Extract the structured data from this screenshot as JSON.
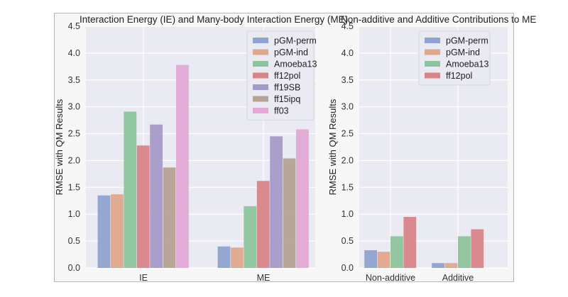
{
  "chart_data": [
    {
      "type": "bar",
      "title": "Interaction Energy (IE) and Many-body Interaction Energy (ME)",
      "xlabel": "",
      "ylabel": "RMSE with QM Results",
      "ylim": [
        0,
        4.5
      ],
      "yticks": [
        "0.0",
        "0.5",
        "1.0",
        "1.5",
        "2.0",
        "2.5",
        "3.0",
        "3.5",
        "4.0",
        "4.5"
      ],
      "categories": [
        "IE",
        "ME"
      ],
      "legend_position": "top-right",
      "series": [
        {
          "name": "pGM-perm",
          "color": "#8ea3cf",
          "values": [
            1.35,
            0.4
          ]
        },
        {
          "name": "pGM-ind",
          "color": "#e0a88b",
          "values": [
            1.37,
            0.38
          ]
        },
        {
          "name": "Amoeba13",
          "color": "#8cc49c",
          "values": [
            2.91,
            1.15
          ]
        },
        {
          "name": "ff12pol",
          "color": "#d98488",
          "values": [
            2.28,
            1.62
          ]
        },
        {
          "name": "ff19SB",
          "color": "#a69ac8",
          "values": [
            2.67,
            2.45
          ]
        },
        {
          "name": "ff15ipq",
          "color": "#b5a393",
          "values": [
            1.87,
            2.04
          ]
        },
        {
          "name": "ff03",
          "color": "#e3a9d4",
          "values": [
            3.78,
            2.58
          ]
        }
      ]
    },
    {
      "type": "bar",
      "title": "Non-additive and Additive Contributions to ME",
      "xlabel": "",
      "ylabel": "RMSE with QM Results",
      "ylim": [
        0,
        4.5
      ],
      "yticks": [
        "0.0",
        "0.5",
        "1.0",
        "1.5",
        "2.0",
        "2.5",
        "3.0",
        "3.5",
        "4.0",
        "4.5"
      ],
      "categories": [
        "Non-additive",
        "Additive"
      ],
      "legend_position": "top-right",
      "series": [
        {
          "name": "pGM-perm",
          "color": "#8ea3cf",
          "values": [
            0.33,
            0.09
          ]
        },
        {
          "name": "pGM-ind",
          "color": "#e0a88b",
          "values": [
            0.3,
            0.09
          ]
        },
        {
          "name": "Amoeba13",
          "color": "#8cc49c",
          "values": [
            0.59,
            0.59
          ]
        },
        {
          "name": "ff12pol",
          "color": "#d98488",
          "values": [
            0.95,
            0.72
          ]
        }
      ]
    }
  ]
}
